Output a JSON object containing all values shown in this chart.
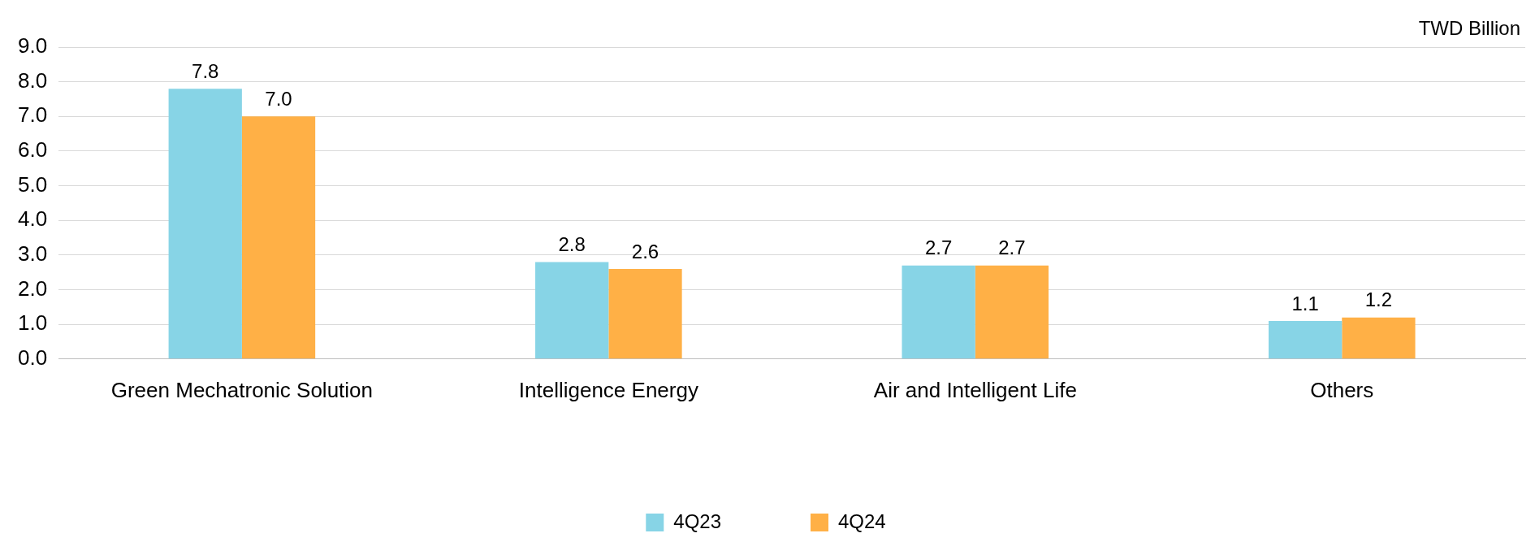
{
  "chart_data": {
    "type": "bar",
    "ylabel": "TWD Billion",
    "categories": [
      "Green Mechatronic Solution",
      "Intelligence Energy",
      "Air and Intelligent Life",
      "Others"
    ],
    "series": [
      {
        "name": "4Q23",
        "color": "#87d4e6",
        "values": [
          7.8,
          2.8,
          2.7,
          1.1
        ],
        "value_labels": [
          "7.8",
          "2.8",
          "2.7",
          "1.1"
        ]
      },
      {
        "name": "4Q24",
        "color": "#ffb046",
        "values": [
          7.0,
          2.6,
          2.7,
          1.2
        ],
        "value_labels": [
          "7.0",
          "2.6",
          "2.7",
          "1.2"
        ]
      }
    ],
    "ylim": [
      0,
      9
    ],
    "yticks": [
      {
        "value": 0,
        "label": "0.0"
      },
      {
        "value": 1,
        "label": "1.0"
      },
      {
        "value": 2,
        "label": "2.0"
      },
      {
        "value": 3,
        "label": "3.0"
      },
      {
        "value": 4,
        "label": "4.0"
      },
      {
        "value": 5,
        "label": "5.0"
      },
      {
        "value": 6,
        "label": "6.0"
      },
      {
        "value": 7,
        "label": "7.0"
      },
      {
        "value": 8,
        "label": "8.0"
      },
      {
        "value": 9,
        "label": "9.0"
      }
    ],
    "grid": "y",
    "legend": "bottom"
  }
}
